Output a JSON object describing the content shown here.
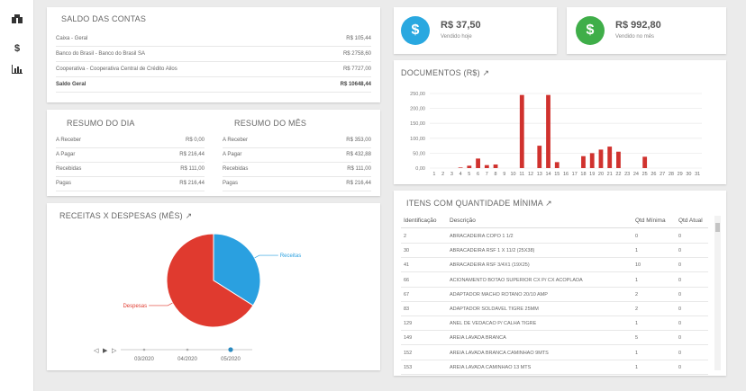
{
  "sidebar": {
    "icons": [
      "dashboard-icon",
      "dollar-icon",
      "bar-chart-icon"
    ],
    "dollar_glyph": "$"
  },
  "saldo": {
    "title": "SALDO DAS CONTAS",
    "rows": [
      {
        "label": "Caixa - Geral",
        "value": "R$ 105,44"
      },
      {
        "label": "Banco do Brasil - Banco do Brasil SA",
        "value": "R$ 2758,60"
      },
      {
        "label": "Cooperativa - Cooperativa Central de Crédito Ailos",
        "value": "R$ 7727,00"
      }
    ],
    "total": {
      "label": "Saldo Geral",
      "value": "R$ 10648,44"
    }
  },
  "resumo_dia": {
    "title": "RESUMO DO DIA",
    "rows": [
      {
        "label": "A Receber",
        "value": "R$ 0,00"
      },
      {
        "label": "A Pagar",
        "value": "R$ 216,44"
      },
      {
        "label": "Recebidas",
        "value": "R$ 111,00"
      },
      {
        "label": "Pagas",
        "value": "R$ 216,44"
      }
    ]
  },
  "resumo_mes": {
    "title": "RESUMO DO MÊS",
    "rows": [
      {
        "label": "A Receber",
        "value": "R$ 353,00"
      },
      {
        "label": "A Pagar",
        "value": "R$ 432,88"
      },
      {
        "label": "Recebidas",
        "value": "R$ 111,00"
      },
      {
        "label": "Pagas",
        "value": "R$ 216,44"
      }
    ]
  },
  "stats": {
    "hoje": {
      "value": "R$ 37,50",
      "label": "Vendido hoje",
      "color": "#29a8e0",
      "glyph": "$"
    },
    "mes": {
      "value": "R$ 992,80",
      "label": "Vendido no mês",
      "color": "#3fae49",
      "glyph": "$"
    }
  },
  "documentos": {
    "title": "DOCUMENTOS (R$)",
    "link_icon": "↗"
  },
  "receitas": {
    "title": "RECEITAS X DESPESAS (MÊS)",
    "link_icon": "↗"
  },
  "itens": {
    "title": "ITENS COM QUANTIDADE MÍNIMA",
    "link_icon": "↗",
    "headers": {
      "id": "Identificação",
      "desc": "Descrição",
      "min": "Qtd Mínima",
      "atual": "Qtd Atual"
    },
    "rows": [
      {
        "id": "2",
        "desc": "ABRACADEIRA COPO 1 1/2",
        "min": "0",
        "atual": "0"
      },
      {
        "id": "30",
        "desc": "ABRACADEIRA RSF 1 X 11/2 (25X38)",
        "min": "1",
        "atual": "0"
      },
      {
        "id": "41",
        "desc": "ABRACADEIRA RSF 3/4X1 (19X25)",
        "min": "10",
        "atual": "0"
      },
      {
        "id": "66",
        "desc": "ACIONAMENTO BOTAO SUPERIOR CX P/ CX ACOPLADA",
        "min": "1",
        "atual": "0"
      },
      {
        "id": "67",
        "desc": "ADAPTADOR MACHO ROTANO 20/10 AMP",
        "min": "2",
        "atual": "0"
      },
      {
        "id": "83",
        "desc": "ADAPTADOR SOLDAVEL TIGRE 25MM",
        "min": "2",
        "atual": "0"
      },
      {
        "id": "129",
        "desc": "ANEL DE VEDACAO P/ CALHA TIGRE",
        "min": "1",
        "atual": "0"
      },
      {
        "id": "149",
        "desc": "AREIA LAVADA BRANCA",
        "min": "5",
        "atual": "0"
      },
      {
        "id": "152",
        "desc": "AREIA LAVADA BRANCA CAMINHAO 9MTS",
        "min": "1",
        "atual": "0"
      },
      {
        "id": "153",
        "desc": "AREIA LAVADA CAMINHAO 13 MTS",
        "min": "1",
        "atual": "0"
      }
    ]
  },
  "chart_data": [
    {
      "type": "bar",
      "title": "DOCUMENTOS (R$)",
      "categories": [
        "1",
        "2",
        "3",
        "4",
        "5",
        "6",
        "7",
        "8",
        "9",
        "10",
        "11",
        "12",
        "13",
        "14",
        "15",
        "16",
        "17",
        "18",
        "19",
        "20",
        "21",
        "22",
        "23",
        "24",
        "25",
        "26",
        "27",
        "28",
        "29",
        "30",
        "31"
      ],
      "values": [
        0,
        0,
        0,
        2,
        8,
        32,
        10,
        12,
        0,
        0,
        245,
        0,
        75,
        245,
        20,
        0,
        0,
        40,
        50,
        62,
        72,
        55,
        0,
        0,
        38,
        0,
        0,
        0,
        0,
        0,
        0
      ],
      "yticks": [
        "0,00",
        "50,00",
        "100,00",
        "150,00",
        "200,00",
        "250,00"
      ],
      "ylim": [
        0,
        250
      ],
      "color": "#d0322e",
      "grid": true
    },
    {
      "type": "pie",
      "title": "RECEITAS X DESPESAS (MÊS)",
      "categories": [
        "Receitas",
        "Despesas"
      ],
      "values": [
        34,
        66
      ],
      "colors": [
        "#2aa0e0",
        "#e03a2f"
      ],
      "timeline": {
        "labels": [
          "03/2020",
          "04/2020",
          "05/2020"
        ],
        "selected": "05/2020",
        "controls": [
          "◁",
          "▶",
          "▷"
        ]
      }
    }
  ]
}
